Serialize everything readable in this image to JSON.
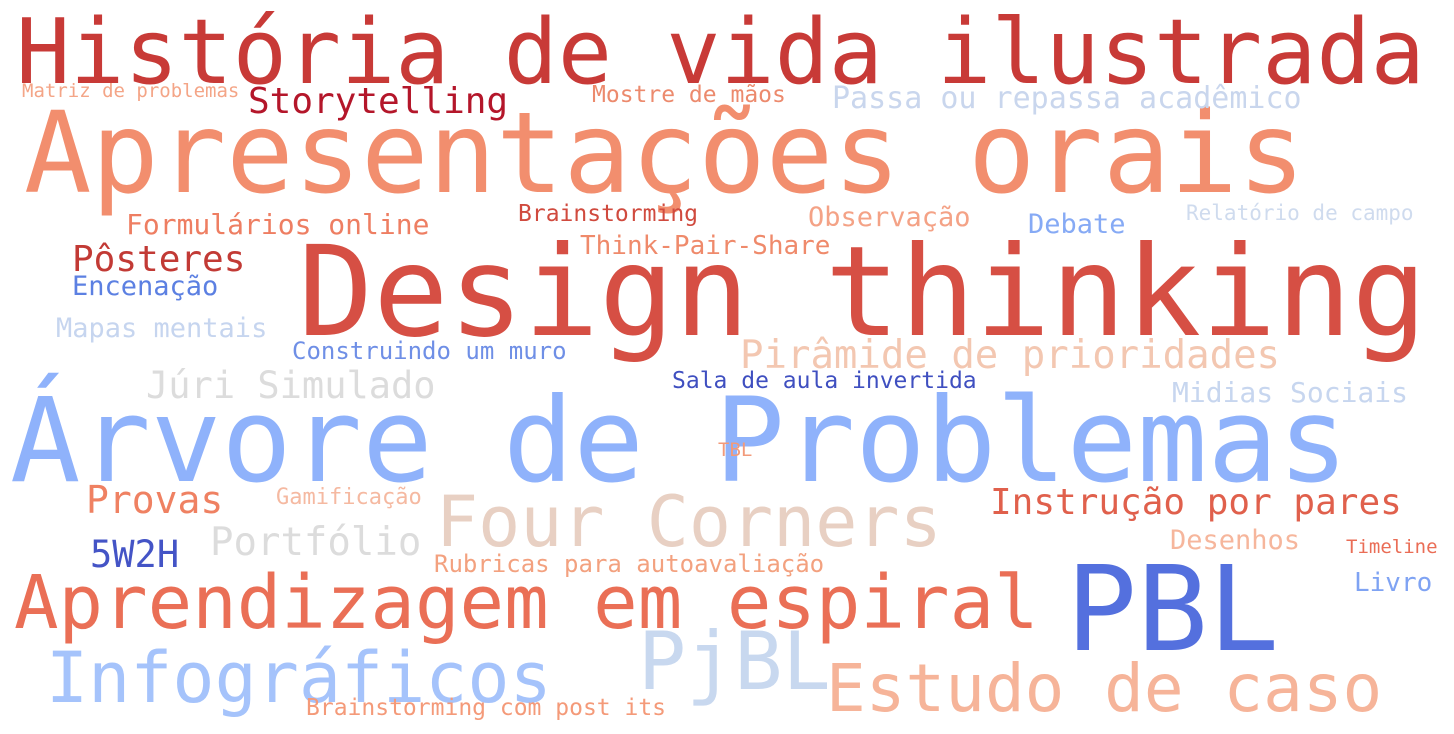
{
  "words": [
    {
      "text": "História de vida ilustrada",
      "color": "#c83a37"
    },
    {
      "text": "Apresentações orais",
      "color": "#f28e6e"
    },
    {
      "text": "Design thinking",
      "color": "#d64f44"
    },
    {
      "text": "Árvore de Problemas",
      "color": "#8fb2fb"
    },
    {
      "text": "Four Corners",
      "color": "#e8d0c3"
    },
    {
      "text": "Aprendizagem em espiral",
      "color": "#ea6f56"
    },
    {
      "text": "PBL",
      "color": "#5470de"
    },
    {
      "text": "Infográficos",
      "color": "#a5c3fb"
    },
    {
      "text": "PjBL",
      "color": "#c8d8ef"
    },
    {
      "text": "Estudo de caso",
      "color": "#f6b499"
    },
    {
      "text": "Storytelling",
      "color": "#b4162a"
    },
    {
      "text": "Passa ou repassa acadêmico",
      "color": "#c9d6ed"
    },
    {
      "text": "Matriz de problemas",
      "color": "#f4a587"
    },
    {
      "text": "Mostre de mãos",
      "color": "#ec8a6d"
    },
    {
      "text": "Formulários online",
      "color": "#ee7e62"
    },
    {
      "text": "Brainstorming",
      "color": "#d04a3e"
    },
    {
      "text": "Observação",
      "color": "#f4a286"
    },
    {
      "text": "Debate",
      "color": "#86aaf5"
    },
    {
      "text": "Relatório de campo",
      "color": "#cfdbee"
    },
    {
      "text": "Think-Pair-Share",
      "color": "#ef8a6b"
    },
    {
      "text": "Pôsteres",
      "color": "#c23a35"
    },
    {
      "text": "Encenação",
      "color": "#5c80e2"
    },
    {
      "text": "Mapas mentais",
      "color": "#c6d5ef"
    },
    {
      "text": "Construindo um muro",
      "color": "#6f8fe6"
    },
    {
      "text": "Pirâmide de prioridades",
      "color": "#f3c7b1"
    },
    {
      "text": "Júri Simulado",
      "color": "#dcdcdc"
    },
    {
      "text": "Sala de aula invertida",
      "color": "#3f4fc0"
    },
    {
      "text": "Midias Sociais",
      "color": "#c7d6ef"
    },
    {
      "text": "TBL",
      "color": "#f29a7a"
    },
    {
      "text": "Provas",
      "color": "#ef8162"
    },
    {
      "text": "Gamificação",
      "color": "#f5b9a1"
    },
    {
      "text": "Instrução por pares",
      "color": "#e0604c"
    },
    {
      "text": "5W2H",
      "color": "#4454c6"
    },
    {
      "text": "Portfólio",
      "color": "#dcdcdc"
    },
    {
      "text": "Rubricas para autoavaliação",
      "color": "#f3a17f"
    },
    {
      "text": "Desenhos",
      "color": "#f6b69c"
    },
    {
      "text": "Timeline",
      "color": "#ea6d56"
    },
    {
      "text": "Livro",
      "color": "#7fa3f3"
    },
    {
      "text": "Brainstorming com post its",
      "color": "#f49a79"
    }
  ]
}
